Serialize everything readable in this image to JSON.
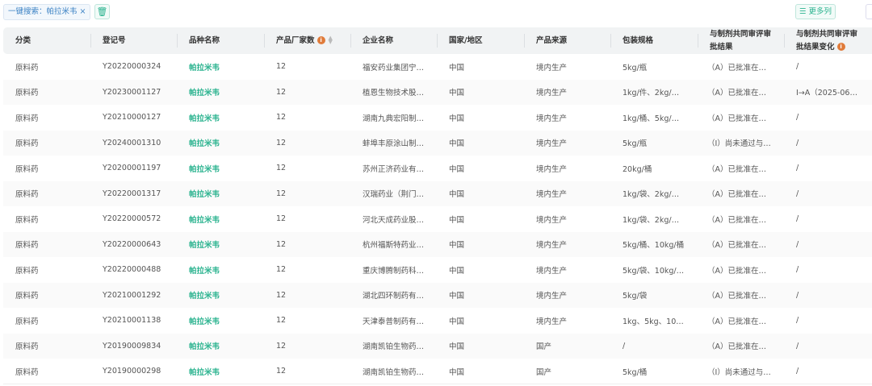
{
  "toolbar": {
    "search_chip": "一键搜索：帕拉米韦",
    "chip_close": "×",
    "trash_icon": "trash-icon",
    "more_columns": "更多列",
    "more_icon": "list-icon"
  },
  "colors": {
    "accent": "#2bb38f",
    "chip": "#3b82c4",
    "info": "#e07b3a"
  },
  "headers": [
    "分类",
    "登记号",
    "品种名称",
    "产品厂家数",
    "企业名称",
    "国家/地区",
    "产品来源",
    "包装规格",
    "与制剂共同审评审批结果",
    "与制剂共同审评审批结果变化"
  ],
  "rows": [
    [
      "原料药",
      "Y20220000324",
      "帕拉米韦",
      "12",
      "福安药业集团宁波…",
      "中国",
      "境内生产",
      "5kg/瓶",
      "（A）已批准在上…",
      "/"
    ],
    [
      "原料药",
      "Y20230001127",
      "帕拉米韦",
      "12",
      "植恩生物技术股份…",
      "中国",
      "境内生产",
      "1kg/件、2kg/件…",
      "（A）已批准在上…",
      "I→A（2025-06-10）"
    ],
    [
      "原料药",
      "Y20210000127",
      "帕拉米韦",
      "12",
      "湖南九典宏阳制药…",
      "中国",
      "境内生产",
      "1kg/桶、5kg/桶…",
      "（A）已批准在上…",
      "/"
    ],
    [
      "原料药",
      "Y20240001310",
      "帕拉米韦",
      "12",
      "蚌埠丰原涂山制药…",
      "中国",
      "境内生产",
      "5kg/瓶",
      "（I）尚未通过与…",
      "/"
    ],
    [
      "原料药",
      "Y20200001197",
      "帕拉米韦",
      "12",
      "苏州正济药业有限…",
      "中国",
      "境内生产",
      "20kg/桶",
      "（A）已批准在上…",
      "/"
    ],
    [
      "原料药",
      "Y20220001317",
      "帕拉米韦",
      "12",
      "汉瑞药业（荆门）…",
      "中国",
      "境内生产",
      "1kg/袋、2kg/袋…",
      "（A）已批准在上…",
      "/"
    ],
    [
      "原料药",
      "Y20220000572",
      "帕拉米韦",
      "12",
      "河北天成药业股份…",
      "中国",
      "境内生产",
      "1kg/袋、2kg/袋…",
      "（A）已批准在上…",
      "/"
    ],
    [
      "原料药",
      "Y20220000643",
      "帕拉米韦",
      "12",
      "杭州福斯特药业有…",
      "中国",
      "境内生产",
      "5kg/桶、10kg/桶",
      "（A）已批准在上…",
      "/"
    ],
    [
      "原料药",
      "Y20220000488",
      "帕拉米韦",
      "12",
      "重庆博腾制药科技…",
      "中国",
      "境内生产",
      "5kg/袋、10kg/袋…",
      "（A）已批准在上…",
      "/"
    ],
    [
      "原料药",
      "Y20210001292",
      "帕拉米韦",
      "12",
      "湖北四环制药有限…",
      "中国",
      "境内生产",
      "5kg/袋",
      "（A）已批准在上…",
      "/"
    ],
    [
      "原料药",
      "Y20210001138",
      "帕拉米韦",
      "12",
      "天津泰普制药有限…",
      "中国",
      "境内生产",
      "1kg、5kg、10kg…",
      "（A）已批准在上…",
      "/"
    ],
    [
      "原料药",
      "Y20190009834",
      "帕拉米韦",
      "12",
      "湖南凯铂生物药业…",
      "中国",
      "国产",
      "/",
      "（A）已批准在上…",
      "/"
    ],
    [
      "原料药",
      "Y20190000298",
      "帕拉米韦",
      "12",
      "湖南凯铂生物药业…",
      "中国",
      "国产",
      "5kg/桶",
      "（I）尚未通过与…",
      "/"
    ]
  ]
}
